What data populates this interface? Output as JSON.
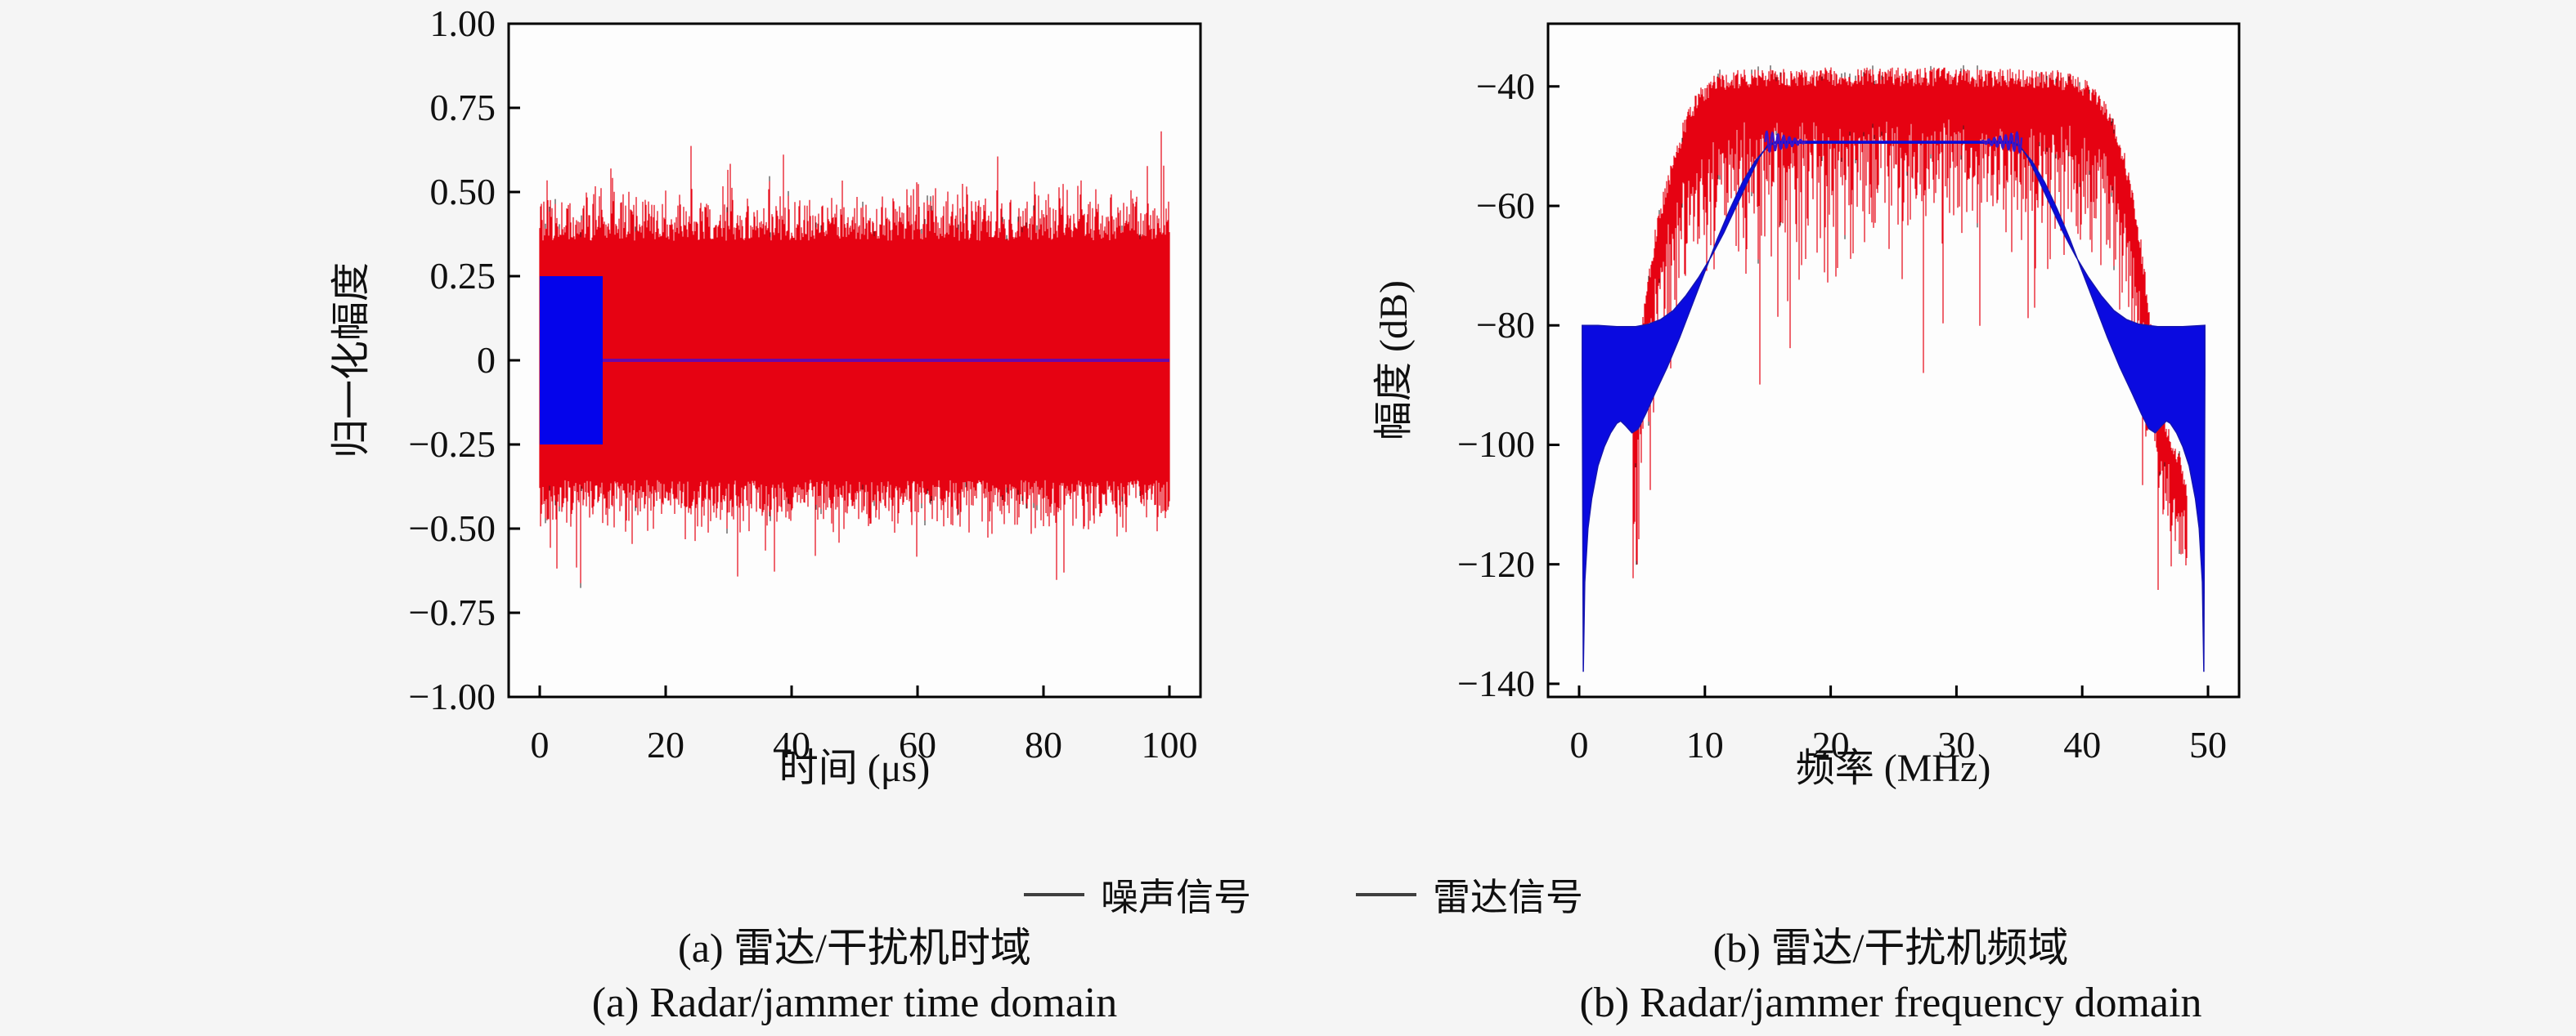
{
  "figure": {
    "background": "#f5f5f5",
    "plot_background": "#fdfdfd",
    "frame_color": "#000000",
    "text_color": "#101010"
  },
  "legend": {
    "items": [
      {
        "label": "噪声信号",
        "line_color": "#3f3f3f"
      },
      {
        "label": "雷达信号",
        "line_color": "#3f3f3f"
      }
    ]
  },
  "chart_data": [
    {
      "type": "line",
      "id": "time-domain",
      "caption_cn": "(a) 雷达/干扰机时域",
      "caption_en": "(a) Radar/jammer time domain",
      "xlabel": "时间 (μs)",
      "ylabel": "归一化幅度",
      "xlim": [
        0,
        100
      ],
      "ylim": [
        -1,
        1
      ],
      "grid": false,
      "xticks": [
        {
          "v": 0,
          "label": "0"
        },
        {
          "v": 20,
          "label": "20"
        },
        {
          "v": 40,
          "label": "40"
        },
        {
          "v": 60,
          "label": "60"
        },
        {
          "v": 80,
          "label": "80"
        },
        {
          "v": 100,
          "label": "100"
        }
      ],
      "yticks": [
        {
          "v": 1.0,
          "label": "1.00"
        },
        {
          "v": 0.75,
          "label": "0.75"
        },
        {
          "v": 0.5,
          "label": "0.50"
        },
        {
          "v": 0.25,
          "label": "0.25"
        },
        {
          "v": 0,
          "label": "0"
        },
        {
          "v": -0.25,
          "label": "−0.25"
        },
        {
          "v": -0.5,
          "label": "−0.50"
        },
        {
          "v": -0.75,
          "label": "−0.75"
        },
        {
          "v": -1.0,
          "label": "−1.00"
        }
      ],
      "series": [
        {
          "name": "噪声信号",
          "kind": "noise_band",
          "color": "#e60212",
          "dark_spike_color": "#222222",
          "x_range": [
            0,
            100
          ],
          "band_abs": 0.355,
          "edge_jitter": 0.1,
          "spike_prob": 0.028,
          "spike_extra": 0.22,
          "max_abs": 0.68,
          "dark_prob": 0.05,
          "seed": 12345
        },
        {
          "name": "雷达信号",
          "kind": "pulse_block",
          "color": "#0404eb",
          "x_range": [
            0,
            10
          ],
          "amplitude": 0.25
        },
        {
          "name": "雷达信号",
          "kind": "zero_line",
          "color": "#6a08a8",
          "x_range": [
            10,
            100
          ],
          "y": 0,
          "width": 4
        }
      ]
    },
    {
      "type": "line",
      "id": "frequency-domain",
      "caption_cn": "(b) 雷达/干扰机频域",
      "caption_en": "(b) Radar/jammer frequency domain",
      "xlabel": "频率 (MHz)",
      "ylabel": "幅度 (dB)",
      "xlim": [
        0,
        50
      ],
      "ylim": [
        -142.2,
        -29.5
      ],
      "grid": false,
      "xticks": [
        {
          "v": 0,
          "label": "0"
        },
        {
          "v": 10,
          "label": "10"
        },
        {
          "v": 20,
          "label": "20"
        },
        {
          "v": 30,
          "label": "30"
        },
        {
          "v": 40,
          "label": "40"
        },
        {
          "v": 50,
          "label": "50"
        }
      ],
      "yticks": [
        {
          "v": -40,
          "label": "−40"
        },
        {
          "v": -60,
          "label": "−60"
        },
        {
          "v": -80,
          "label": "−80"
        },
        {
          "v": -100,
          "label": "−100"
        },
        {
          "v": -120,
          "label": "−120"
        },
        {
          "v": -140,
          "label": "−140"
        }
      ],
      "series": [
        {
          "name": "噪声信号",
          "kind": "noise_spectrum",
          "color": "#e60212",
          "dark_spike_color": "#222222",
          "seed": 777,
          "x_range": [
            4.3,
            48.3
          ],
          "top_envelope": [
            [
              4.3,
              -94
            ],
            [
              4.8,
              -84
            ],
            [
              5.4,
              -74
            ],
            [
              6,
              -66
            ],
            [
              6.8,
              -58
            ],
            [
              7.6,
              -52
            ],
            [
              8.5,
              -46
            ],
            [
              9.5,
              -42
            ],
            [
              10.5,
              -40
            ],
            [
              12,
              -38.8
            ],
            [
              20,
              -38.4
            ],
            [
              30,
              -38.4
            ],
            [
              38,
              -38.8
            ],
            [
              39.5,
              -39.6
            ],
            [
              40.8,
              -41
            ],
            [
              41.8,
              -43.5
            ],
            [
              42.6,
              -47
            ],
            [
              43.3,
              -52
            ],
            [
              44,
              -58
            ],
            [
              44.6,
              -66
            ],
            [
              45.2,
              -76
            ],
            [
              45.7,
              -85
            ],
            [
              46.1,
              -92
            ],
            [
              46.6,
              -97
            ],
            [
              47.2,
              -100
            ],
            [
              47.8,
              -103
            ],
            [
              48.3,
              -107
            ]
          ],
          "top_jitter": 1.6,
          "body_depth": 8,
          "depth_jitter": 13,
          "deep_spike_prob": 0.07,
          "deep_spike_extra": 28,
          "blob_start": 45.4,
          "blob_body_depth": 5,
          "blob_depth_jitter": 9,
          "floor": -141
        },
        {
          "name": "雷达信号",
          "kind": "lfm_spectrum",
          "color": "#0a0ae0",
          "edge_color": "#1515b0",
          "top_edge": [
            [
              0.25,
              -80
            ],
            [
              1.5,
              -80
            ],
            [
              3,
              -80.2
            ],
            [
              4.5,
              -80.2
            ],
            [
              5.5,
              -79.8
            ],
            [
              6.5,
              -79
            ],
            [
              7.5,
              -77.5
            ],
            [
              8.5,
              -75
            ],
            [
              9.5,
              -72
            ],
            [
              10.5,
              -68.5
            ],
            [
              11.5,
              -64.5
            ],
            [
              12.5,
              -60
            ],
            [
              13.5,
              -55.5
            ],
            [
              14.3,
              -52
            ],
            [
              15,
              -49.8
            ],
            [
              15.6,
              -49.3
            ],
            [
              34.4,
              -49.3
            ],
            [
              35,
              -49.8
            ],
            [
              35.7,
              -52
            ],
            [
              36.5,
              -55.5
            ],
            [
              37.5,
              -60
            ],
            [
              38.5,
              -64.5
            ],
            [
              39.5,
              -68.5
            ],
            [
              40.5,
              -72
            ],
            [
              41.5,
              -75
            ],
            [
              42.5,
              -77.5
            ],
            [
              43.5,
              -79
            ],
            [
              44.5,
              -79.8
            ],
            [
              46,
              -80.2
            ],
            [
              48,
              -80.2
            ],
            [
              49.75,
              -80
            ]
          ],
          "bottom_edge": [
            [
              0.25,
              -88
            ],
            [
              0.33,
              -138
            ],
            [
              0.45,
              -123
            ],
            [
              0.7,
              -114
            ],
            [
              1,
              -109
            ],
            [
              1.5,
              -103.5
            ],
            [
              2,
              -100.3
            ],
            [
              2.5,
              -98
            ],
            [
              3,
              -96.4
            ],
            [
              3.3,
              -96
            ],
            [
              3.7,
              -96.8
            ],
            [
              4.2,
              -98
            ],
            [
              4.7,
              -97.3
            ],
            [
              5.3,
              -94.8
            ],
            [
              6,
              -91.5
            ],
            [
              7,
              -87
            ],
            [
              8,
              -82
            ],
            [
              9,
              -76.5
            ],
            [
              10,
              -71
            ],
            [
              11,
              -65.5
            ],
            [
              12,
              -60.5
            ],
            [
              13,
              -56
            ],
            [
              14,
              -52.5
            ],
            [
              15,
              -50
            ],
            [
              15.6,
              -49.5
            ],
            [
              34.4,
              -49.5
            ],
            [
              35,
              -50
            ],
            [
              36,
              -52.5
            ],
            [
              37,
              -56
            ],
            [
              38,
              -60.5
            ],
            [
              39,
              -65.5
            ],
            [
              40,
              -71
            ],
            [
              41,
              -76.5
            ],
            [
              42,
              -82
            ],
            [
              43,
              -87
            ],
            [
              44,
              -91.5
            ],
            [
              44.7,
              -94.8
            ],
            [
              45.3,
              -97.3
            ],
            [
              45.8,
              -98
            ],
            [
              46.3,
              -96.8
            ],
            [
              46.7,
              -96
            ],
            [
              47,
              -96.4
            ],
            [
              47.5,
              -98
            ],
            [
              48,
              -100.3
            ],
            [
              48.5,
              -103.5
            ],
            [
              49,
              -109
            ],
            [
              49.3,
              -114
            ],
            [
              49.55,
              -123
            ],
            [
              49.67,
              -138
            ],
            [
              49.75,
              -88
            ]
          ],
          "plateau": {
            "x_range": [
              15.6,
              34.4
            ],
            "level": -49.3
          },
          "ripple": {
            "ranges": [
              [
                14.8,
                18,
                "left"
              ],
              [
                32,
                35.2,
                "right"
              ]
            ],
            "amplitude": 1.8,
            "min_amplitude": 0.15,
            "period": 0.45,
            "color": "#3c14c8"
          }
        }
      ]
    }
  ]
}
